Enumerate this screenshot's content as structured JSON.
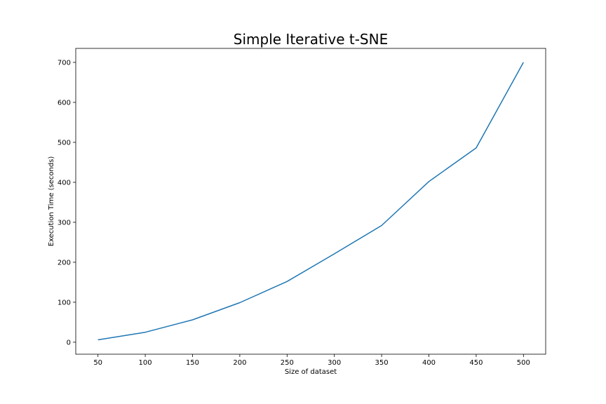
{
  "chart_data": {
    "type": "line",
    "title": "Simple Iterative t-SNE",
    "xlabel": "Size of dataset",
    "ylabel": "Execution Time (seconds)",
    "x": [
      50,
      100,
      150,
      200,
      250,
      300,
      350,
      400,
      450,
      500
    ],
    "series": [
      {
        "values": [
          6,
          25,
          56,
          99,
          152,
          221,
          292,
          402,
          486,
          700
        ],
        "color": "#1f77b4"
      }
    ],
    "xlim": [
      26.5,
      523.5
    ],
    "ylim": [
      -30,
      735
    ],
    "xticks": [
      50,
      100,
      150,
      200,
      250,
      300,
      350,
      400,
      450,
      500
    ],
    "yticks": [
      0,
      100,
      200,
      300,
      400,
      500,
      600,
      700
    ],
    "grid": false,
    "legend": "none"
  }
}
